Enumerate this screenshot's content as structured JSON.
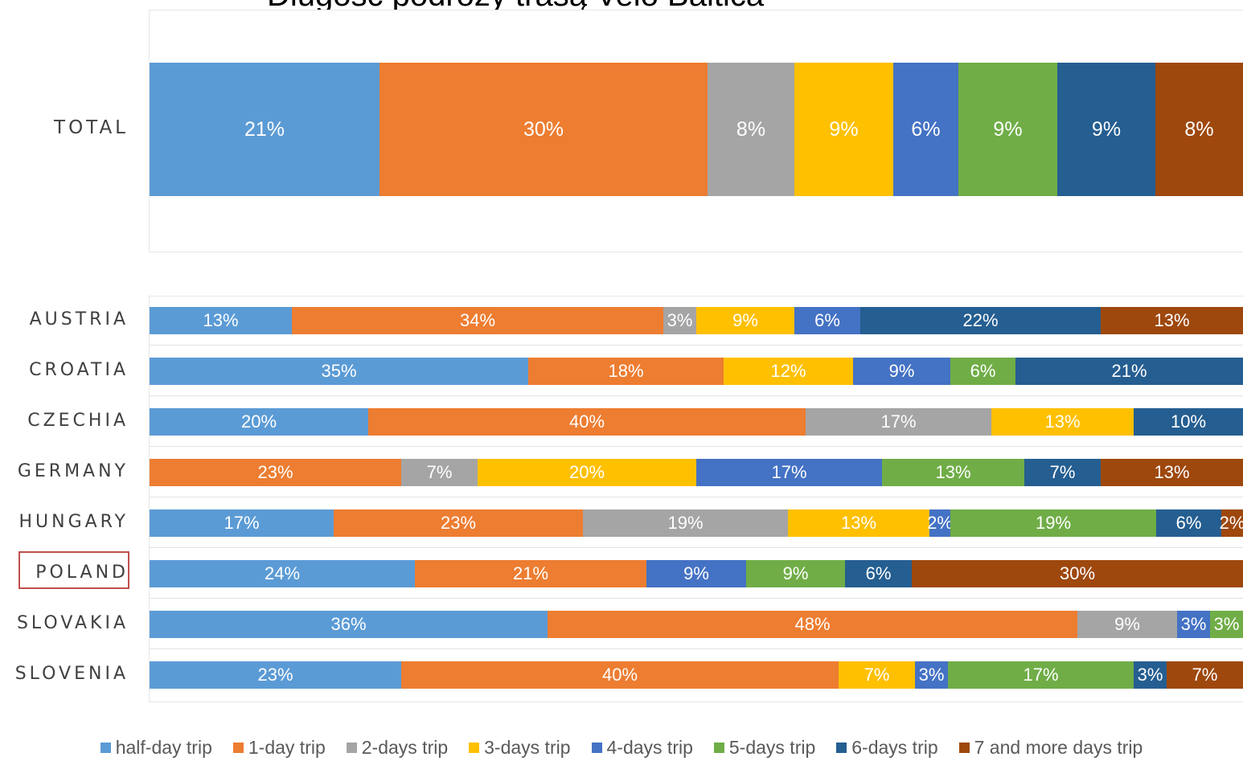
{
  "chart_data": {
    "type": "bar",
    "orientation": "horizontal",
    "stacked": "percent",
    "title": "Długość podróży trasą Velo Baltica",
    "legend_position": "bottom",
    "grid": false,
    "series": [
      {
        "name": "half-day trip",
        "color": "#5b9bd5"
      },
      {
        "name": "1-day trip",
        "color": "#ed7d31"
      },
      {
        "name": "2-days trip",
        "color": "#a5a5a5"
      },
      {
        "name": "3-days trip",
        "color": "#ffc000"
      },
      {
        "name": "4-days trip",
        "color": "#4472c4"
      },
      {
        "name": "5-days trip",
        "color": "#70ad47"
      },
      {
        "name": "6-days trip",
        "color": "#255e91"
      },
      {
        "name": "7 and more days trip",
        "color": "#9e480e"
      }
    ],
    "total": {
      "category": "TOTAL",
      "values": [
        21,
        30,
        8,
        9,
        6,
        9,
        9,
        8
      ]
    },
    "categories": [
      "AUSTRIA",
      "CROATIA",
      "CZECHIA",
      "GERMANY",
      "HUNGARY",
      "POLAND",
      "SLOVAKIA",
      "SLOVENIA"
    ],
    "values": [
      [
        13,
        34,
        3,
        9,
        6,
        0,
        22,
        13
      ],
      [
        35,
        18,
        0,
        12,
        9,
        6,
        21,
        0
      ],
      [
        20,
        40,
        17,
        13,
        0,
        0,
        10,
        0
      ],
      [
        0,
        23,
        7,
        20,
        17,
        13,
        7,
        13
      ],
      [
        17,
        23,
        19,
        13,
        2,
        19,
        6,
        2
      ],
      [
        24,
        21,
        0,
        0,
        9,
        9,
        6,
        30
      ],
      [
        36,
        48,
        9,
        0,
        3,
        3,
        0,
        0
      ],
      [
        23,
        40,
        0,
        7,
        3,
        17,
        3,
        7
      ]
    ],
    "highlighted_category": "POLAND",
    "highlight_color": "#c0504d"
  }
}
